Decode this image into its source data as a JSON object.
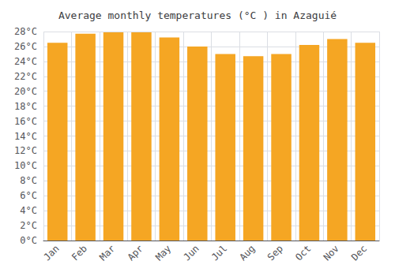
{
  "chart_data": {
    "type": "bar",
    "title": "Average monthly temperatures (°C ) in Azaguié",
    "categories": [
      "Jan",
      "Feb",
      "Mar",
      "Apr",
      "May",
      "Jun",
      "Jul",
      "Aug",
      "Sep",
      "Oct",
      "Nov",
      "Dec"
    ],
    "values": [
      26.5,
      27.7,
      27.9,
      27.9,
      27.2,
      26.0,
      25.0,
      24.7,
      25.0,
      26.2,
      27.0,
      26.5
    ],
    "color": "#F5A623",
    "ylim": [
      0,
      28
    ],
    "yticks": [
      {
        "value": 0,
        "label": "0°C"
      },
      {
        "value": 2,
        "label": "2°C"
      },
      {
        "value": 4,
        "label": "4°C"
      },
      {
        "value": 6,
        "label": "6°C"
      },
      {
        "value": 8,
        "label": "8°C"
      },
      {
        "value": 10,
        "label": "10°C"
      },
      {
        "value": 12,
        "label": "12°C"
      },
      {
        "value": 14,
        "label": "14°C"
      },
      {
        "value": 16,
        "label": "16°C"
      },
      {
        "value": 18,
        "label": "18°C"
      },
      {
        "value": 20,
        "label": "20°C"
      },
      {
        "value": 22,
        "label": "22°C"
      },
      {
        "value": 24,
        "label": "24°C"
      },
      {
        "value": 26,
        "label": "26°C"
      },
      {
        "value": 28,
        "label": "28°C"
      }
    ],
    "grid": true
  }
}
